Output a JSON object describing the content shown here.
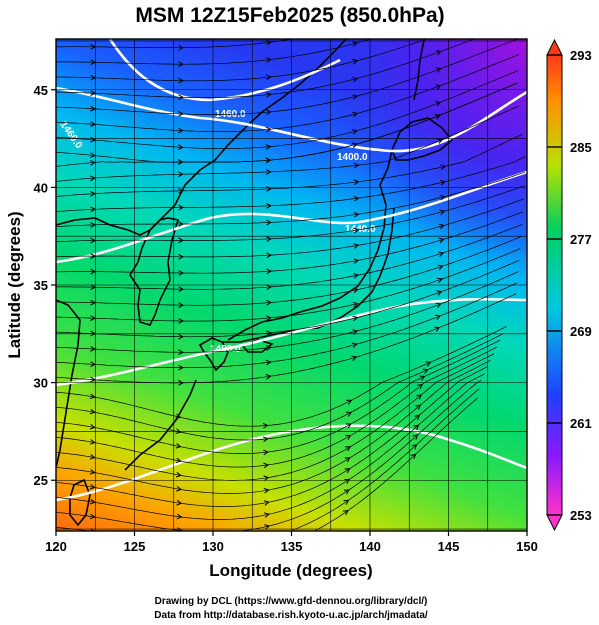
{
  "map": {
    "title": "MSM 12Z15Feb2025 (850.0hPa)",
    "xlabel": "Longitude (degrees)",
    "ylabel": "Latitude  (degrees)",
    "lon_range": [
      120,
      150
    ],
    "lat_range": [
      22.4,
      47.6
    ],
    "lon_ticks": [
      "120",
      "125",
      "130",
      "135",
      "140",
      "145",
      "150"
    ],
    "lat_ticks": [
      "25",
      "30",
      "35",
      "40",
      "45"
    ],
    "contour_labels": [
      "1460.0",
      "1400.0",
      "1460.0",
      "1440.0",
      "1480.0"
    ],
    "colorbar": {
      "ticks": [
        "293",
        "285",
        "277",
        "269",
        "261",
        "253"
      ],
      "min": 253,
      "max": 293,
      "colors": [
        "#ff33cc",
        "#8a1aff",
        "#2040ff",
        "#00c8e0",
        "#00d060",
        "#b8e000",
        "#ff9000",
        "#ff3a1a"
      ]
    },
    "credit_line1": "Drawing by DCL (https://www.gfd-dennou.org/library/dcl/)",
    "credit_line2": "Data from http://database.rish.kyoto-u.ac.jp/arch/jmadata/"
  }
}
